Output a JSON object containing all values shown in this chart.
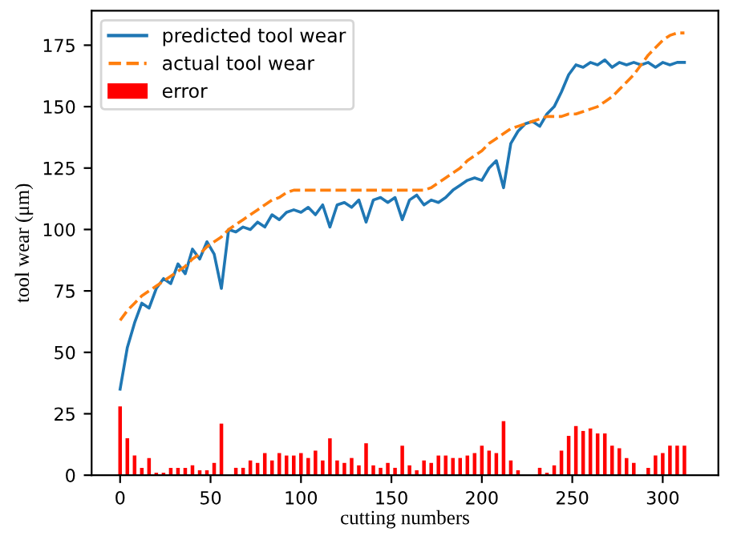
{
  "chart_data": {
    "type": "line",
    "xlabel": "cutting numbers",
    "ylabel": "tool wear (μm)",
    "xlim": [
      -15.75,
      330.75
    ],
    "ylim": [
      0,
      189
    ],
    "xticks": [
      0,
      50,
      100,
      150,
      200,
      250,
      300
    ],
    "yticks": [
      0,
      25,
      50,
      75,
      100,
      125,
      150,
      175
    ],
    "legend": "top left",
    "grid": false,
    "series": [
      {
        "name": "predicted tool wear",
        "color": "#1f77b4",
        "line_style": "solid",
        "x": [
          0,
          4,
          8,
          12,
          16,
          20,
          24,
          28,
          32,
          36,
          40,
          44,
          48,
          52,
          56,
          60,
          64,
          68,
          72,
          76,
          80,
          84,
          88,
          92,
          96,
          100,
          104,
          108,
          112,
          116,
          120,
          124,
          128,
          132,
          136,
          140,
          144,
          148,
          152,
          156,
          160,
          164,
          168,
          172,
          176,
          180,
          184,
          188,
          192,
          196,
          200,
          204,
          208,
          212,
          216,
          220,
          224,
          228,
          232,
          236,
          240,
          244,
          248,
          252,
          256,
          260,
          264,
          268,
          272,
          276,
          280,
          284,
          288,
          292,
          296,
          300,
          304,
          308,
          312
        ],
        "values": [
          35,
          52,
          62,
          70,
          68,
          76,
          80,
          78,
          86,
          82,
          92,
          88,
          95,
          90,
          76,
          100,
          99,
          101,
          100,
          103,
          101,
          106,
          104,
          107,
          108,
          107,
          109,
          106,
          110,
          101,
          110,
          111,
          109,
          112,
          103,
          112,
          113,
          111,
          113,
          104,
          112,
          114,
          110,
          112,
          111,
          113,
          116,
          118,
          120,
          121,
          120,
          125,
          128,
          117,
          135,
          140,
          143,
          144,
          142,
          147,
          150,
          156,
          163,
          167,
          166,
          168,
          167,
          169,
          166,
          168,
          167,
          168,
          167,
          168,
          166,
          168,
          167,
          168,
          168
        ]
      },
      {
        "name": "actual tool wear",
        "color": "#ff7f0e",
        "line_style": "dashed",
        "x": [
          0,
          4,
          8,
          12,
          16,
          20,
          24,
          28,
          32,
          36,
          40,
          44,
          48,
          52,
          56,
          60,
          64,
          68,
          72,
          76,
          80,
          84,
          88,
          92,
          96,
          100,
          104,
          108,
          112,
          116,
          120,
          124,
          128,
          132,
          136,
          140,
          144,
          148,
          152,
          156,
          160,
          164,
          168,
          172,
          176,
          180,
          184,
          188,
          192,
          196,
          200,
          204,
          208,
          212,
          216,
          220,
          224,
          228,
          232,
          236,
          240,
          244,
          248,
          252,
          256,
          260,
          264,
          268,
          272,
          276,
          280,
          284,
          288,
          292,
          296,
          300,
          304,
          308,
          312
        ],
        "values": [
          63,
          67,
          70,
          73,
          75,
          77,
          79,
          81,
          83,
          85,
          88,
          90,
          93,
          95,
          97,
          100,
          102,
          104,
          106,
          108,
          110,
          112,
          113,
          115,
          116,
          116,
          116,
          116,
          116,
          116,
          116,
          116,
          116,
          116,
          116,
          116,
          116,
          116,
          116,
          116,
          116,
          116,
          116,
          117,
          119,
          121,
          123,
          125,
          128,
          130,
          132,
          135,
          137,
          139,
          141,
          142,
          143,
          144,
          145,
          146,
          146,
          146,
          147,
          147,
          148,
          149,
          150,
          152,
          154,
          157,
          160,
          163,
          167,
          171,
          174,
          177,
          179,
          180,
          180
        ]
      },
      {
        "name": "error",
        "type": "bar",
        "color": "#ff0000",
        "x": [
          0,
          4,
          8,
          12,
          16,
          20,
          24,
          28,
          32,
          36,
          40,
          44,
          48,
          52,
          56,
          60,
          64,
          68,
          72,
          76,
          80,
          84,
          88,
          92,
          96,
          100,
          104,
          108,
          112,
          116,
          120,
          124,
          128,
          132,
          136,
          140,
          144,
          148,
          152,
          156,
          160,
          164,
          168,
          172,
          176,
          180,
          184,
          188,
          192,
          196,
          200,
          204,
          208,
          212,
          216,
          220,
          224,
          228,
          232,
          236,
          240,
          244,
          248,
          252,
          256,
          260,
          264,
          268,
          272,
          276,
          280,
          284,
          288,
          292,
          296,
          300,
          304,
          308,
          312
        ],
        "values": [
          28,
          15,
          8,
          3,
          7,
          1,
          1,
          3,
          3,
          3,
          4,
          2,
          2,
          5,
          21,
          0,
          3,
          3,
          6,
          5,
          9,
          6,
          9,
          8,
          8,
          9,
          7,
          10,
          6,
          15,
          6,
          5,
          7,
          4,
          13,
          4,
          3,
          5,
          3,
          12,
          4,
          2,
          6,
          5,
          8,
          8,
          7,
          7,
          8,
          9,
          12,
          10,
          9,
          22,
          6,
          2,
          0,
          0,
          3,
          1,
          4,
          10,
          16,
          20,
          18,
          19,
          17,
          17,
          12,
          11,
          7,
          5,
          0,
          3,
          8,
          9,
          12,
          12,
          12
        ]
      }
    ]
  }
}
